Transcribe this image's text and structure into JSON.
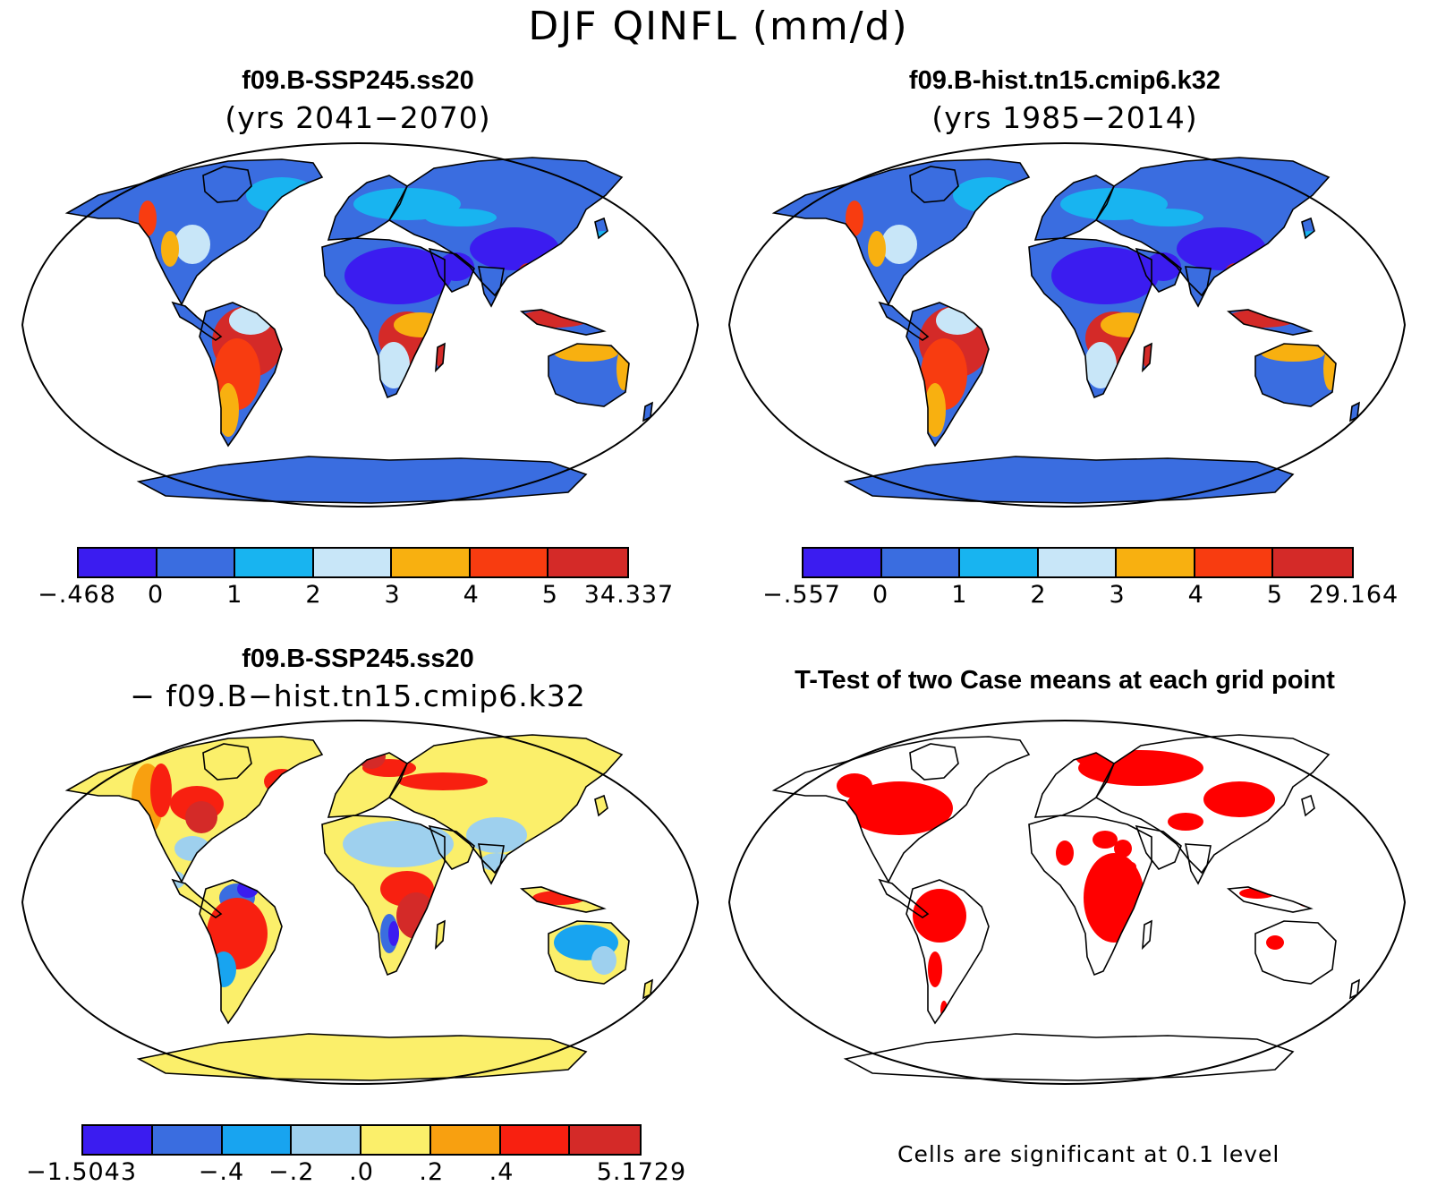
{
  "title": "DJF QINFL (mm/d)",
  "panels": {
    "top_left": {
      "title": "f09.B-SSP245.ss20",
      "subtitle": "(yrs 2041−2070)"
    },
    "top_right": {
      "title": "f09.B-hist.tn15.cmip6.k32",
      "subtitle": "(yrs 1985−2014)"
    },
    "bottom_left": {
      "title": "f09.B-SSP245.ss20",
      "subtitle": "− f09.B−hist.tn15.cmip6.k32"
    },
    "bottom_right": {
      "title": "T-Test of two Case means at each grid point",
      "footnote": "Cells are significant at 0.1 level"
    }
  },
  "colorbars": {
    "top_left": {
      "colors": [
        "#3b1cf0",
        "#3a6de0",
        "#18b4f0",
        "#c8e6f8",
        "#f8b010",
        "#f83c10",
        "#d42a28"
      ],
      "labels": [
        "−.468",
        "0",
        "1",
        "2",
        "3",
        "4",
        "5",
        "34.337"
      ]
    },
    "top_right": {
      "colors": [
        "#3b1cf0",
        "#3a6de0",
        "#18b4f0",
        "#c8e6f8",
        "#f8b010",
        "#f83c10",
        "#d42a28"
      ],
      "labels": [
        "−.557",
        "0",
        "1",
        "2",
        "3",
        "4",
        "5",
        "29.164"
      ]
    },
    "bottom_left": {
      "colors": [
        "#3b1cf0",
        "#3a6de0",
        "#18a4f0",
        "#9ed0ee",
        "#fbef6a",
        "#f8a010",
        "#f82010",
        "#d42a28"
      ],
      "labels": [
        "−1.5043",
        "",
        "−.4",
        "−.2",
        ".0",
        ".2",
        ".4",
        "",
        "5.1729"
      ]
    }
  },
  "map_colors": {
    "ocean": "#ffffff",
    "significant": "#ff0000",
    "coast": "#000000"
  }
}
